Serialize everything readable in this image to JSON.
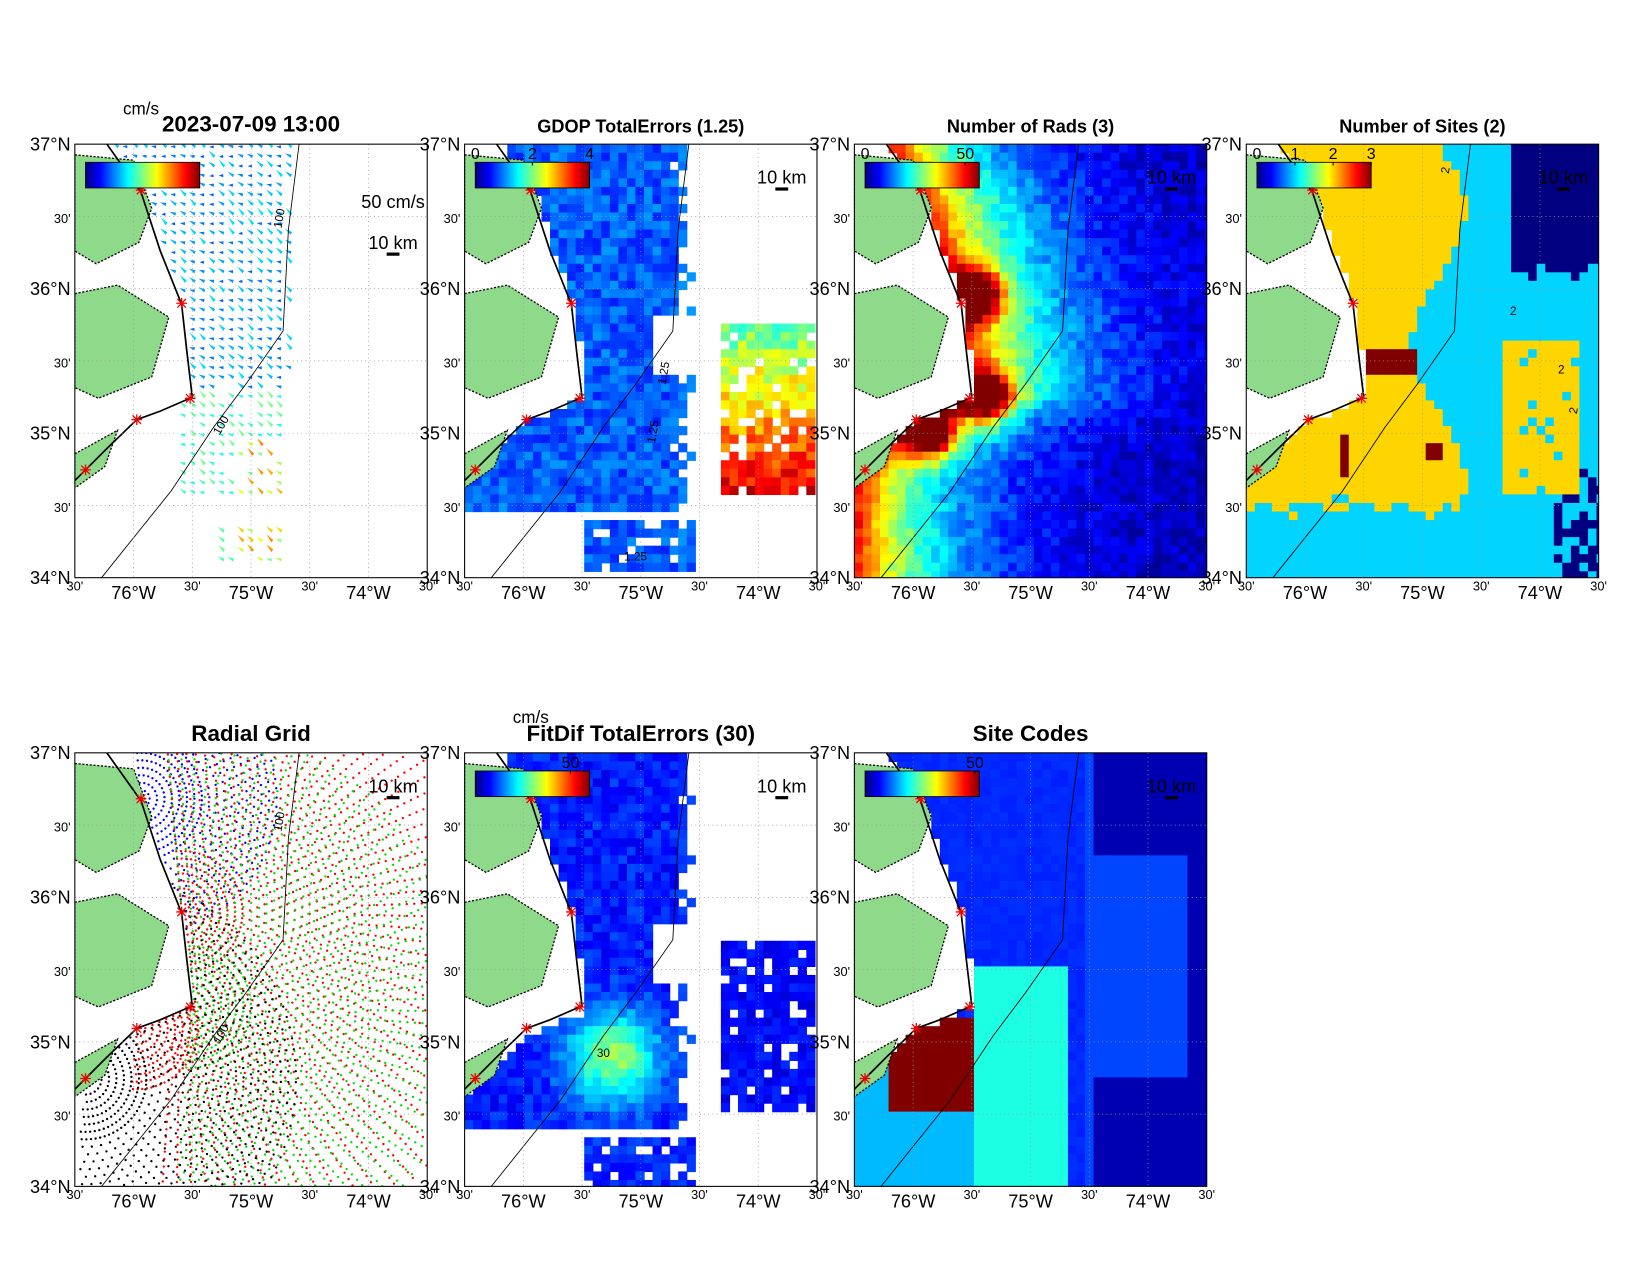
{
  "panels": [
    {
      "title": "2023-07-09 13:00",
      "colorbar": {
        "unit": "cm/s"
      },
      "vector_scale": "50 cm/s",
      "scale_bar": "10 km",
      "contour_labels": [
        "100",
        "100"
      ]
    },
    {
      "title": "GDOP TotalErrors (1.25)",
      "colorbar": {
        "ticks": [
          0,
          2,
          4
        ],
        "clim": [
          0,
          4
        ]
      },
      "scale_bar": "10 km",
      "contour_labels": [
        "1.25",
        "1.25",
        "1.25"
      ]
    },
    {
      "title": "Number of Rads (3)",
      "colorbar": {
        "ticks": [
          0,
          50
        ],
        "clim": [
          0,
          57
        ]
      },
      "scale_bar": "10 km"
    },
    {
      "title": "Number of Sites (2)",
      "colorbar": {
        "ticks": [
          0,
          1,
          2,
          3
        ],
        "clim": [
          0,
          3
        ]
      },
      "scale_bar": "10 km",
      "contour_labels": [
        "2",
        "2",
        "2",
        "2"
      ]
    },
    {
      "title": "Radial Grid",
      "scale_bar": "10 km",
      "contour_labels": [
        "100",
        "100"
      ]
    },
    {
      "title": "FitDif TotalErrors (30)",
      "colorbar": {
        "unit": "cm/s",
        "ticks": [
          50
        ],
        "clim": [
          0,
          60
        ]
      },
      "scale_bar": "10 km",
      "contour_labels": [
        "30"
      ]
    },
    {
      "title": "Site Codes",
      "colorbar": {
        "ticks": [
          50
        ],
        "clim": [
          0,
          52
        ]
      },
      "scale_bar": "10 km"
    }
  ],
  "lat_labels": [
    "37°N",
    "30'",
    "36°N",
    "30'",
    "35°N",
    "30'",
    "34°N"
  ],
  "lon_labels": [
    "30'",
    "76°W",
    "30'",
    "75°W",
    "30'",
    "74°W",
    "30'"
  ]
}
